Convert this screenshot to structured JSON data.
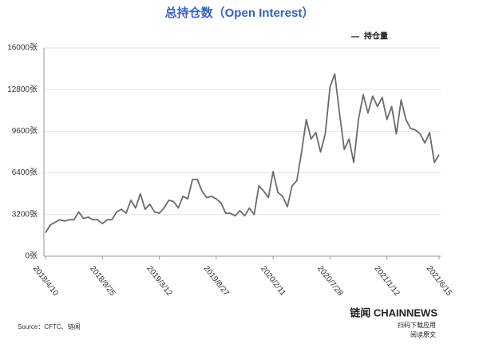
{
  "chart_data": {
    "type": "line",
    "title": "总持仓数（Open Interest）",
    "categories": [
      "2018/4/10",
      null,
      null,
      null,
      null,
      null,
      null,
      null,
      null,
      null,
      null,
      null,
      "2018/9/25",
      null,
      null,
      null,
      null,
      null,
      null,
      null,
      null,
      null,
      null,
      null,
      "2019/3/12",
      null,
      null,
      null,
      null,
      null,
      null,
      null,
      null,
      null,
      null,
      null,
      "2019/8/27",
      null,
      null,
      null,
      null,
      null,
      null,
      null,
      null,
      null,
      null,
      null,
      "2020/2/11",
      null,
      null,
      null,
      null,
      null,
      null,
      null,
      null,
      null,
      null,
      null,
      "2020/7/28",
      null,
      null,
      null,
      null,
      null,
      null,
      null,
      null,
      null,
      null,
      null,
      "2021/1/12",
      null,
      null,
      null,
      null,
      null,
      null,
      null,
      null,
      null,
      null,
      "2021/6/15"
    ],
    "series": [
      {
        "name": "持仓量",
        "color": "#6b6b6b",
        "values": [
          1800,
          2400,
          2600,
          2800,
          2700,
          2800,
          2800,
          3400,
          2900,
          3000,
          2800,
          2800,
          2500,
          2800,
          2800,
          3400,
          3600,
          3300,
          4300,
          3700,
          4800,
          3600,
          4000,
          3400,
          3300,
          3700,
          4300,
          4200,
          3700,
          4600,
          4400,
          5900,
          5900,
          5000,
          4500,
          4600,
          4400,
          4100,
          3300,
          3300,
          3100,
          3500,
          3100,
          3700,
          3200,
          5400,
          5000,
          4500,
          6500,
          4900,
          4600,
          3800,
          5400,
          5800,
          8000,
          10500,
          9000,
          9500,
          8000,
          9400,
          13000,
          14000,
          11000,
          8200,
          9000,
          7200,
          10500,
          12400,
          11000,
          12300,
          11500,
          12200,
          10500,
          11500,
          9400,
          12000,
          10500,
          9800,
          9700,
          9400,
          8700,
          9500,
          7200,
          7800
        ]
      }
    ],
    "ylim": [
      0,
      16000
    ],
    "yticks": [
      {
        "value": 0,
        "label": "0张"
      },
      {
        "value": 3200,
        "label": "3200张"
      },
      {
        "value": 6400,
        "label": "6400张"
      },
      {
        "value": 9600,
        "label": "9600张"
      },
      {
        "value": 12800,
        "label": "12800张"
      },
      {
        "value": 16000,
        "label": "16000张"
      }
    ],
    "grid": true,
    "legend": "top-right"
  },
  "footer": {
    "source": "Source：CFTC、链闻",
    "brand": "链闻 CHAINNEWS",
    "line1": "扫码下载应用",
    "line2": "阅读原文"
  }
}
